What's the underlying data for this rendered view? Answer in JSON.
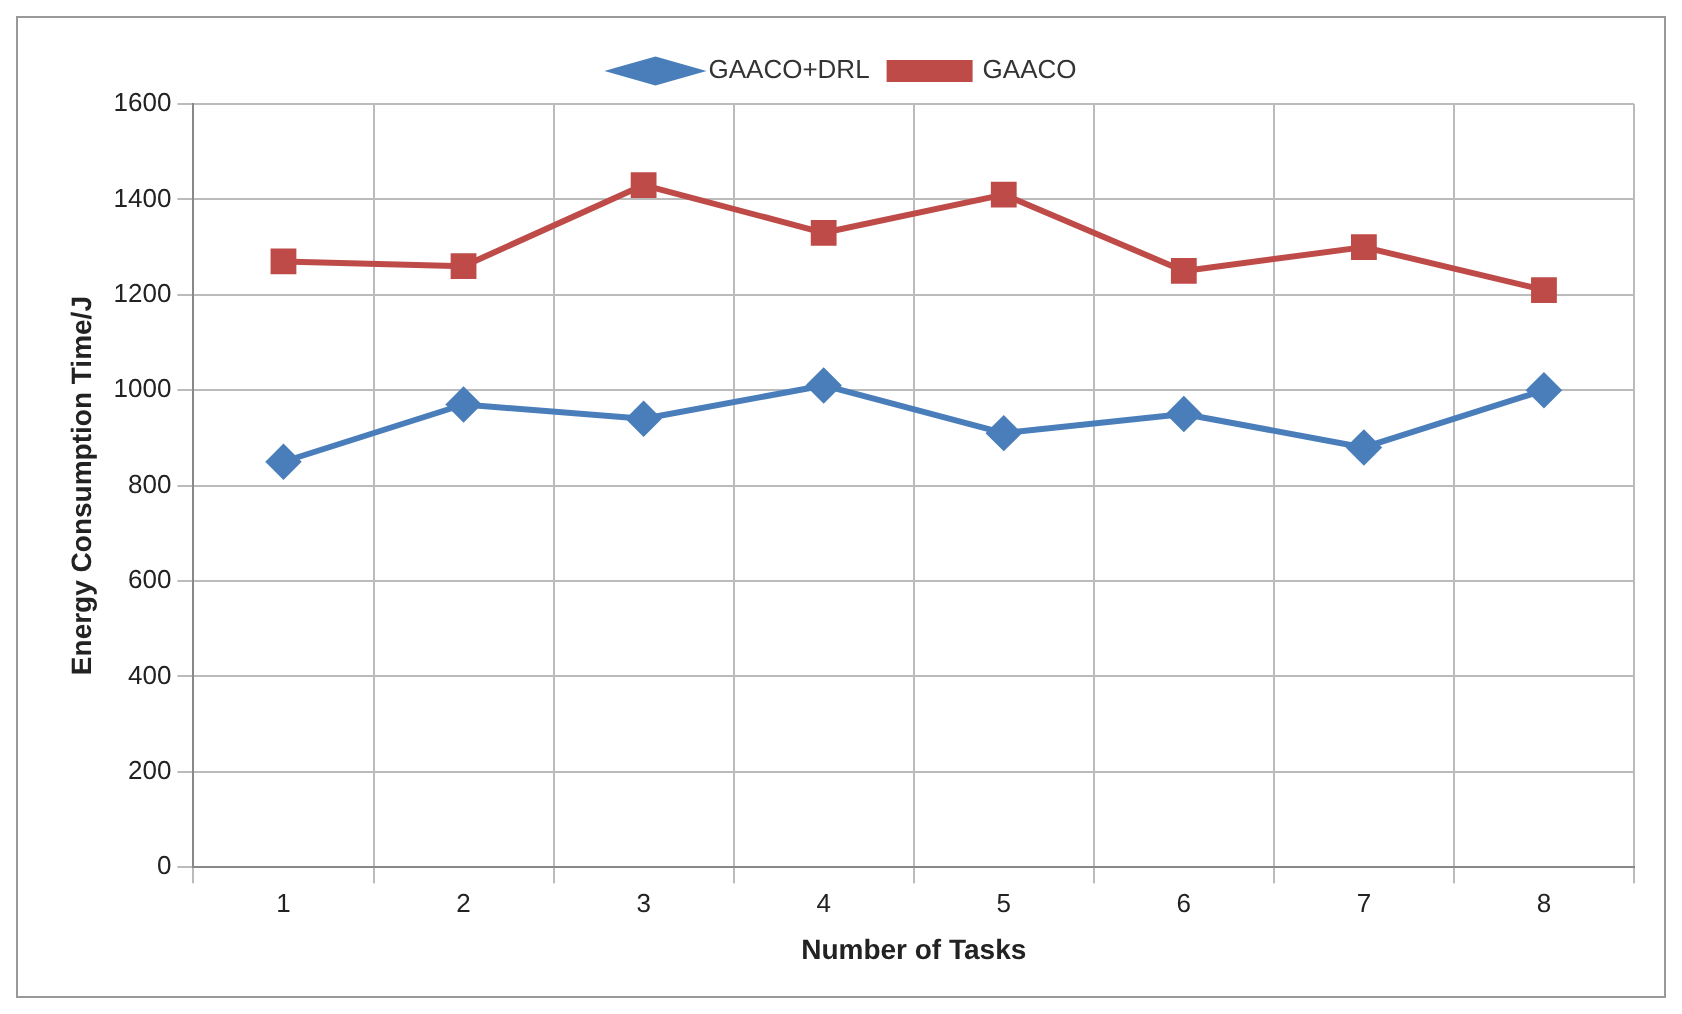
{
  "chart_data": {
    "type": "line",
    "xlabel": "Number of Tasks",
    "ylabel": "Energy Consumption Time/J",
    "categories": [
      "1",
      "2",
      "3",
      "4",
      "5",
      "6",
      "7",
      "8"
    ],
    "series": [
      {
        "name": "GAACO+DRL",
        "color": "#4a7ebb",
        "marker": "diamond",
        "values": [
          850,
          970,
          940,
          1010,
          910,
          950,
          880,
          1000
        ]
      },
      {
        "name": "GAACO",
        "color": "#be4b48",
        "marker": "square",
        "values": [
          1270,
          1260,
          1430,
          1330,
          1410,
          1250,
          1300,
          1210
        ]
      }
    ],
    "ylim": [
      0,
      1600
    ],
    "yticks": [
      0,
      200,
      400,
      600,
      800,
      1000,
      1200,
      1400,
      1600
    ],
    "grid": true,
    "legend": "top",
    "line_style": "solid"
  }
}
